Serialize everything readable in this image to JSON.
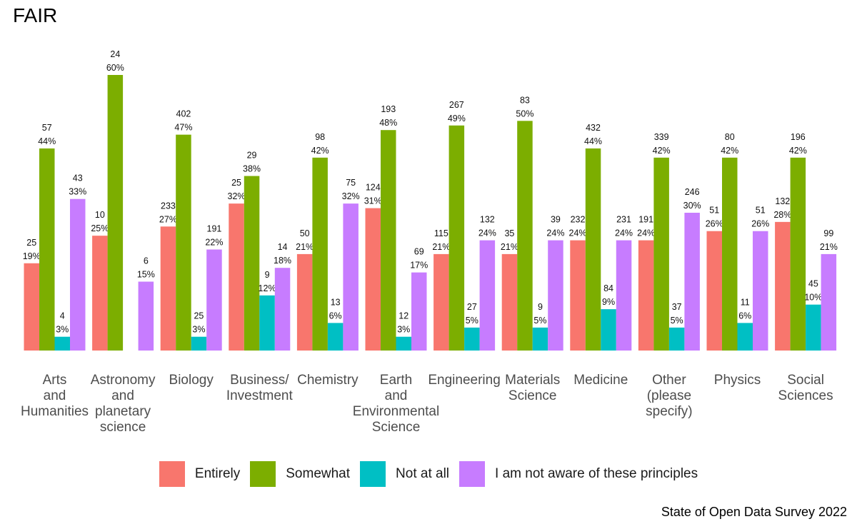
{
  "title": "FAIR",
  "caption": "State of Open Data Survey 2022",
  "chart_data": {
    "type": "bar",
    "title": "FAIR",
    "xlabel": "",
    "ylabel": "",
    "ylim": [
      0,
      0.63
    ],
    "grid": false,
    "legend_position": "bottom",
    "categories": [
      "Arts\nand\nHumanities",
      "Astronomy\nand\nplanetary\nscience",
      "Biology",
      "Business/\nInvestment",
      "Chemistry",
      "Earth\nand\nEnvironmental\nScience",
      "Engineering",
      "Materials\nScience",
      "Medicine",
      "Other\n(please\nspecify)",
      "Physics",
      "Social\nSciences"
    ],
    "series": [
      {
        "name": "Entirely",
        "color": "#F8766D",
        "values": [
          0.19,
          0.25,
          0.27,
          0.32,
          0.21,
          0.31,
          0.21,
          0.21,
          0.24,
          0.24,
          0.26,
          0.28
        ],
        "counts": [
          "25",
          "10",
          "233",
          "25",
          "50",
          "124",
          "115",
          "35",
          "232",
          "191",
          "51",
          "132"
        ],
        "labels": [
          "19%",
          "25%",
          "27%",
          "32%",
          "21%",
          "31%",
          "21%",
          "21%",
          "24%",
          "24%",
          "26%",
          "28%"
        ]
      },
      {
        "name": "Somewhat",
        "color": "#7CAE00",
        "values": [
          0.44,
          0.6,
          0.47,
          0.38,
          0.42,
          0.48,
          0.49,
          0.5,
          0.44,
          0.42,
          0.42,
          0.42
        ],
        "counts": [
          "57",
          "24",
          "402",
          "29",
          "98",
          "193",
          "267",
          "83",
          "432",
          "339",
          "80",
          "196"
        ],
        "labels": [
          "44%",
          "60%",
          "47%",
          "38%",
          "42%",
          "48%",
          "49%",
          "50%",
          "44%",
          "42%",
          "42%",
          "42%"
        ]
      },
      {
        "name": "Not at all",
        "color": "#00BFC4",
        "values": [
          0.03,
          null,
          0.03,
          0.12,
          0.06,
          0.03,
          0.05,
          0.05,
          0.09,
          0.05,
          0.06,
          0.1
        ],
        "counts": [
          "4",
          "",
          "25",
          "9",
          "13",
          "12",
          "27",
          "9",
          "84",
          "37",
          "11",
          "45"
        ],
        "labels": [
          "3%",
          "",
          "3%",
          "12%",
          "6%",
          "3%",
          "5%",
          "5%",
          "9%",
          "5%",
          "6%",
          "10%"
        ]
      },
      {
        "name": "I am not aware of these principles",
        "color": "#C77CFF",
        "values": [
          0.33,
          0.15,
          0.22,
          0.18,
          0.32,
          0.17,
          0.24,
          0.24,
          0.24,
          0.3,
          0.26,
          0.21
        ],
        "counts": [
          "43",
          "6",
          "191",
          "14",
          "75",
          "69",
          "132",
          "39",
          "231",
          "246",
          "51",
          "99"
        ],
        "labels": [
          "33%",
          "15%",
          "22%",
          "18%",
          "32%",
          "17%",
          "24%",
          "24%",
          "24%",
          "30%",
          "26%",
          "21%"
        ]
      }
    ]
  }
}
